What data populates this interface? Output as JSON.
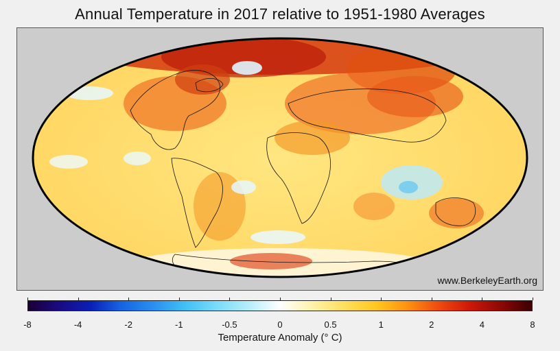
{
  "title": "Annual Temperature in 2017 relative to 1951-1980 Averages",
  "credit": "www.BerkeleyEarth.org",
  "colorbar": {
    "label": "Temperature Anomaly (° C)",
    "ticks": [
      "-8",
      "-4",
      "-2",
      "-1",
      "-0.5",
      "0",
      "0.5",
      "1",
      "2",
      "4",
      "8"
    ],
    "scale": "diverging",
    "colors": {
      "min": "#1a0033",
      "neutral": "#ffffff",
      "max": "#3a0002"
    }
  },
  "map": {
    "projection": "mollweide",
    "background": "#cccccc",
    "ocean_base": "#ffe89a"
  }
}
